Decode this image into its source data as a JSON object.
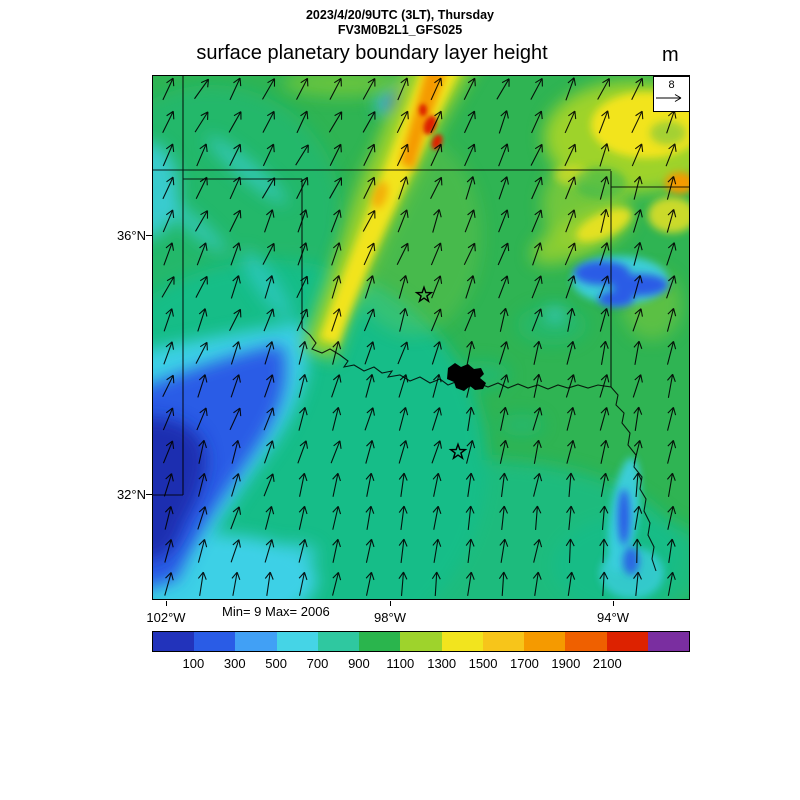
{
  "header": {
    "datetime_line": "2023/4/20/9UTC (3LT), Thursday",
    "model_line": "FV3M0B2L1_GFS025",
    "title": "surface planetary boundary layer height",
    "units_label": "m"
  },
  "vector_key": {
    "reference_value": "8"
  },
  "map": {
    "lat_labels": [
      "36°N",
      "32°N"
    ],
    "lon_labels": [
      "102°W",
      "98°W",
      "94°W"
    ],
    "stats_label": "Min= 9 Max= 2006"
  },
  "colorbar": {
    "tick_labels": [
      "100",
      "300",
      "500",
      "700",
      "900",
      "1100",
      "1300",
      "1500",
      "1700",
      "1900",
      "2100"
    ],
    "segment_colors": [
      "#2233bb",
      "#2a5ce6",
      "#41a0f5",
      "#45d4e6",
      "#2fc8a0",
      "#2ab54d",
      "#9ed32c",
      "#f2e41e",
      "#f7c51a",
      "#f59a00",
      "#ef6000",
      "#dd2200",
      "#7a2ea0"
    ]
  },
  "chart_data": {
    "type": "heatmap",
    "title": "surface planetary boundary layer height",
    "model": "FV3M0B2L1_GFS025",
    "valid_time": "2023/4/20/9UTC (3LT), Thursday",
    "units": "m",
    "stat_min": 9,
    "stat_max": 2006,
    "lat_ticks_deg_n": [
      36,
      32
    ],
    "lon_ticks_deg_w": [
      102,
      98,
      94
    ],
    "colorbar_tick_values": [
      100,
      300,
      500,
      700,
      900,
      1100,
      1300,
      1500,
      1700,
      1900,
      2100
    ],
    "colorbar_colors": [
      "#2233bb",
      "#2a5ce6",
      "#41a0f5",
      "#45d4e6",
      "#2fc8a0",
      "#2ab54d",
      "#9ed32c",
      "#f2e41e",
      "#f7c51a",
      "#f59a00",
      "#ef6000",
      "#dd2200",
      "#7a2ea0"
    ],
    "wind_vector_reference": 8,
    "legend_position": "bottom",
    "grid": false,
    "overlays": [
      "wind vector arrows",
      "state boundaries (OK / TX / KS / AR / MO region)",
      "two star site markers",
      "Lake Texoma water body"
    ],
    "features": [
      {
        "region": "narrow dryline band from Kansas border through western Oklahoma into northwest Texas",
        "value_range_m": [
          1100,
          2006
        ]
      },
      {
        "region": "band over west Texas and southwest corner of domain",
        "value_range_m": [
          9,
          500
        ]
      },
      {
        "region": "most of Oklahoma and north Texas",
        "value_range_m": [
          700,
          1100
        ]
      },
      {
        "region": "northeast corner and far-right yellow areas",
        "value_range_m": [
          900,
          1700
        ]
      },
      {
        "region": "low patches in eastern Oklahoma and lower-right of domain",
        "value_range_m": [
          100,
          500
        ]
      }
    ]
  }
}
